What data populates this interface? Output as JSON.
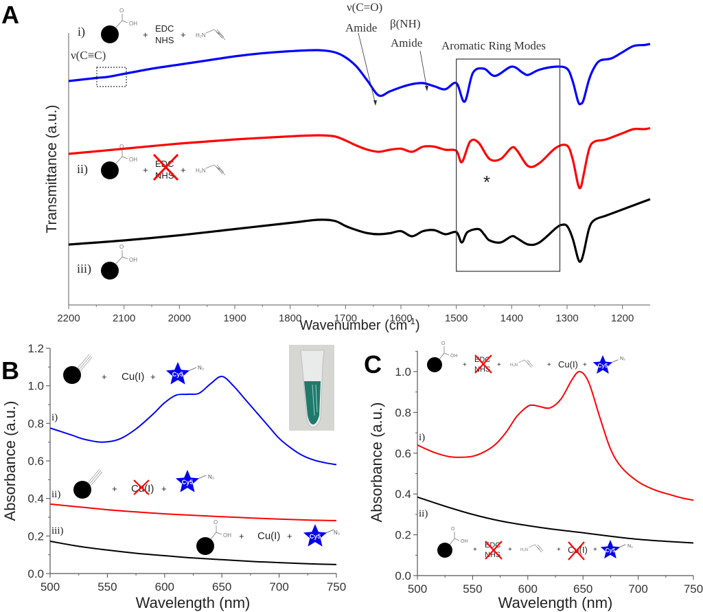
{
  "chart_data": [
    {
      "panel": "A",
      "type": "line",
      "title": "",
      "xlabel": "Wavenumber (cm-1)",
      "ylabel": "Transmittance (a.u.)",
      "xlim": [
        2200,
        1150
      ],
      "x_reversed": true,
      "x_ticks": [
        "2200",
        "2100",
        "2000",
        "1900",
        "1800",
        "1700",
        "1600",
        "1500",
        "1400",
        "1300",
        "1200"
      ],
      "y_ticks": [],
      "grid": false,
      "series": [
        {
          "name": "i)",
          "color": "#0000ff",
          "x": [
            2200,
            2150,
            2130,
            2100,
            2050,
            2000,
            1950,
            1900,
            1850,
            1800,
            1750,
            1720,
            1700,
            1680,
            1660,
            1640,
            1620,
            1600,
            1580,
            1560,
            1540,
            1520,
            1500,
            1485,
            1470,
            1450,
            1430,
            1400,
            1380,
            1370,
            1350,
            1320,
            1300,
            1290,
            1280,
            1275,
            1270,
            1260,
            1250,
            1240,
            1220,
            1200,
            1180,
            1160,
            1150
          ],
          "y": [
            0.58,
            0.61,
            0.62,
            0.65,
            0.7,
            0.74,
            0.78,
            0.82,
            0.85,
            0.87,
            0.88,
            0.86,
            0.81,
            0.72,
            0.58,
            0.44,
            0.48,
            0.52,
            0.55,
            0.56,
            0.53,
            0.5,
            0.56,
            0.38,
            0.66,
            0.7,
            0.63,
            0.72,
            0.66,
            0.64,
            0.69,
            0.72,
            0.7,
            0.58,
            0.38,
            0.36,
            0.4,
            0.6,
            0.72,
            0.78,
            0.8,
            0.86,
            0.92,
            0.93,
            0.94
          ]
        },
        {
          "name": "ii)",
          "color": "#ff0000",
          "x": [
            2200,
            2100,
            2000,
            1900,
            1800,
            1750,
            1720,
            1700,
            1680,
            1660,
            1640,
            1620,
            1600,
            1580,
            1560,
            1540,
            1520,
            1500,
            1490,
            1475,
            1460,
            1440,
            1420,
            1400,
            1390,
            1370,
            1350,
            1320,
            1300,
            1290,
            1280,
            1275,
            1270,
            1260,
            1250,
            1230,
            1200,
            1180,
            1160,
            1150
          ],
          "y": [
            0.0,
            0.05,
            0.1,
            0.14,
            0.17,
            0.18,
            0.17,
            0.13,
            0.08,
            0.04,
            0.02,
            0.04,
            0.05,
            0.02,
            0.07,
            0.07,
            0.04,
            0.03,
            -0.08,
            0.12,
            0.11,
            -0.05,
            -0.05,
            0.06,
            0.03,
            -0.12,
            -0.09,
            0.06,
            0.08,
            -0.05,
            -0.3,
            -0.32,
            -0.2,
            0.05,
            0.12,
            0.14,
            0.2,
            0.24,
            0.24,
            0.25
          ]
        },
        {
          "name": "iii)",
          "color": "#000000",
          "x": [
            2200,
            2100,
            2000,
            1900,
            1800,
            1750,
            1720,
            1700,
            1680,
            1660,
            1640,
            1620,
            1600,
            1580,
            1560,
            1540,
            1520,
            1500,
            1490,
            1480,
            1460,
            1450,
            1440,
            1420,
            1400,
            1390,
            1370,
            1350,
            1320,
            1310,
            1300,
            1290,
            1280,
            1275,
            1270,
            1260,
            1250,
            1230,
            1200,
            1180,
            1160,
            1150
          ],
          "y": [
            -0.48,
            -0.44,
            -0.39,
            -0.33,
            -0.27,
            -0.24,
            -0.25,
            -0.3,
            -0.34,
            -0.37,
            -0.38,
            -0.37,
            -0.35,
            -0.4,
            -0.35,
            -0.34,
            -0.38,
            -0.36,
            -0.46,
            -0.36,
            -0.33,
            -0.38,
            -0.44,
            -0.46,
            -0.4,
            -0.42,
            -0.48,
            -0.46,
            -0.32,
            -0.29,
            -0.3,
            -0.42,
            -0.62,
            -0.64,
            -0.56,
            -0.32,
            -0.24,
            -0.2,
            -0.14,
            -0.1,
            -0.06,
            -0.04
          ]
        }
      ],
      "annotations": [
        {
          "text": "ν(C≡C)",
          "note": "dotted box near 2130 cm-1 on trace i)"
        },
        {
          "text": "ν(C=O)",
          "line2": "Amide",
          "arrow_to": 1640
        },
        {
          "text": "β(NH)",
          "line2": "Amide",
          "arrow_to": 1545
        },
        {
          "text": "Aromatic Ring Modes",
          "box_range": [
            1500,
            1313
          ]
        },
        {
          "text": "*",
          "at": 1435
        }
      ],
      "scheme_labels": {
        "i": {
          "roman": "i)",
          "reagents": [
            "EDC",
            "NHS"
          ],
          "amine": "H₂N",
          "plus": "+"
        },
        "ii": {
          "roman": "ii)",
          "reagents": [
            "EDC",
            "NHS"
          ],
          "crossed_out": true,
          "amine": "H₂N",
          "plus": "+"
        },
        "iii": {
          "roman": "iii)"
        },
        "cooh": "OH",
        "carbonyl": "O"
      }
    },
    {
      "panel": "B",
      "type": "line",
      "xlabel": "Wavelength (nm)",
      "ylabel": "Absorbance (a.u.)",
      "xlim": [
        500,
        750
      ],
      "ylim": [
        0.0,
        1.2
      ],
      "x_ticks": [
        "500",
        "550",
        "600",
        "650",
        "700",
        "750"
      ],
      "y_ticks": [
        "0.0",
        "0.2",
        "0.4",
        "0.6",
        "0.8",
        "1.0",
        "1.2"
      ],
      "grid": false,
      "series": [
        {
          "name": "i)",
          "color": "#0000ff",
          "x": [
            500,
            510,
            520,
            530,
            545,
            560,
            575,
            590,
            600,
            610,
            620,
            630,
            640,
            650,
            660,
            670,
            680,
            690,
            700,
            710,
            720,
            730,
            740,
            750
          ],
          "y": [
            0.775,
            0.755,
            0.735,
            0.715,
            0.7,
            0.715,
            0.77,
            0.85,
            0.91,
            0.95,
            0.955,
            0.96,
            1.01,
            1.05,
            1.0,
            0.93,
            0.86,
            0.79,
            0.72,
            0.67,
            0.63,
            0.605,
            0.59,
            0.58
          ]
        },
        {
          "name": "ii)",
          "color": "#ff0000",
          "x": [
            500,
            525,
            550,
            575,
            600,
            625,
            650,
            675,
            700,
            725,
            750
          ],
          "y": [
            0.37,
            0.355,
            0.34,
            0.328,
            0.318,
            0.31,
            0.303,
            0.296,
            0.29,
            0.285,
            0.282
          ]
        },
        {
          "name": "iii)",
          "color": "#000000",
          "x": [
            500,
            525,
            550,
            575,
            600,
            625,
            650,
            675,
            700,
            725,
            750
          ],
          "y": [
            0.172,
            0.145,
            0.125,
            0.108,
            0.095,
            0.083,
            0.074,
            0.065,
            0.058,
            0.052,
            0.048
          ]
        }
      ],
      "scheme_labels": {
        "i": {
          "roman": "i)",
          "plus1": "+",
          "cu": "Cu(I)",
          "plus2": "+",
          "dye": "Cy5",
          "azide": "N₃"
        },
        "ii": {
          "roman": "ii)",
          "plus1": "+",
          "cu": "Cu(I)",
          "cu_crossed_out": true,
          "plus2": "+",
          "dye": "Cy5",
          "azide": "N₃"
        },
        "iii": {
          "roman": "iii)",
          "cooh": "OH",
          "carbonyl": "O",
          "plus1": "+",
          "cu": "Cu(I)",
          "plus2": "+",
          "dye": "Cy5",
          "azide": "N₃"
        }
      },
      "inset": "photo of microcentrifuge tube containing teal/green solution"
    },
    {
      "panel": "C",
      "type": "line",
      "xlabel": "Wavelength (nm)",
      "ylabel": "Absorbance (a.u.)",
      "xlim": [
        500,
        750
      ],
      "ylim": [
        0.0,
        1.1
      ],
      "x_ticks": [
        "500",
        "550",
        "600",
        "650",
        "700",
        "750"
      ],
      "y_ticks": [
        "0.0",
        "0.2",
        "0.4",
        "0.6",
        "0.8",
        "1.0"
      ],
      "grid": false,
      "series": [
        {
          "name": "i)",
          "color": "#ff0000",
          "x": [
            500,
            510,
            520,
            530,
            540,
            550,
            560,
            570,
            580,
            590,
            600,
            605,
            610,
            620,
            630,
            640,
            647,
            655,
            665,
            675,
            685,
            700,
            715,
            730,
            740,
            750
          ],
          "y": [
            0.64,
            0.615,
            0.595,
            0.582,
            0.58,
            0.585,
            0.605,
            0.64,
            0.7,
            0.78,
            0.83,
            0.835,
            0.83,
            0.822,
            0.865,
            0.96,
            1.0,
            0.95,
            0.78,
            0.62,
            0.53,
            0.46,
            0.42,
            0.395,
            0.38,
            0.37
          ]
        },
        {
          "name": "ii)",
          "color": "#000000",
          "x": [
            500,
            525,
            550,
            575,
            600,
            625,
            650,
            675,
            700,
            725,
            750
          ],
          "y": [
            0.385,
            0.34,
            0.3,
            0.268,
            0.245,
            0.226,
            0.21,
            0.193,
            0.178,
            0.168,
            0.16
          ]
        }
      ],
      "scheme_labels": {
        "i": {
          "roman": "i)",
          "cooh": "OH",
          "carbonyl": "O",
          "plus": "+",
          "reagents": [
            "EDC",
            "NHS"
          ],
          "reagents_crossed_out": true,
          "amine": "H₂N",
          "cu": "Cu(I)",
          "dye": "Cy5",
          "azide": "N₃"
        },
        "ii": {
          "roman": "ii)",
          "cooh": "OH",
          "carbonyl": "O",
          "plus": "+",
          "reagents": [
            "EDC",
            "NHS"
          ],
          "reagents_crossed_out": true,
          "amine": "H₂N",
          "cu": "Cu(I)",
          "cu_crossed_out": true,
          "dye": "Cy5",
          "azide": "N₃"
        }
      }
    }
  ],
  "panel_labels": [
    "A",
    "B",
    "C"
  ],
  "axis_text": {
    "a_ylabel": "Transmittance (a.u.)",
    "a_xlabel_main": "Wavenumber (cm",
    "a_xlabel_sup": "-1",
    "a_xlabel_end": ")",
    "bc_xlabel": "Wavelength (nm)",
    "bc_ylabel": "Absorbance (a.u.)"
  }
}
